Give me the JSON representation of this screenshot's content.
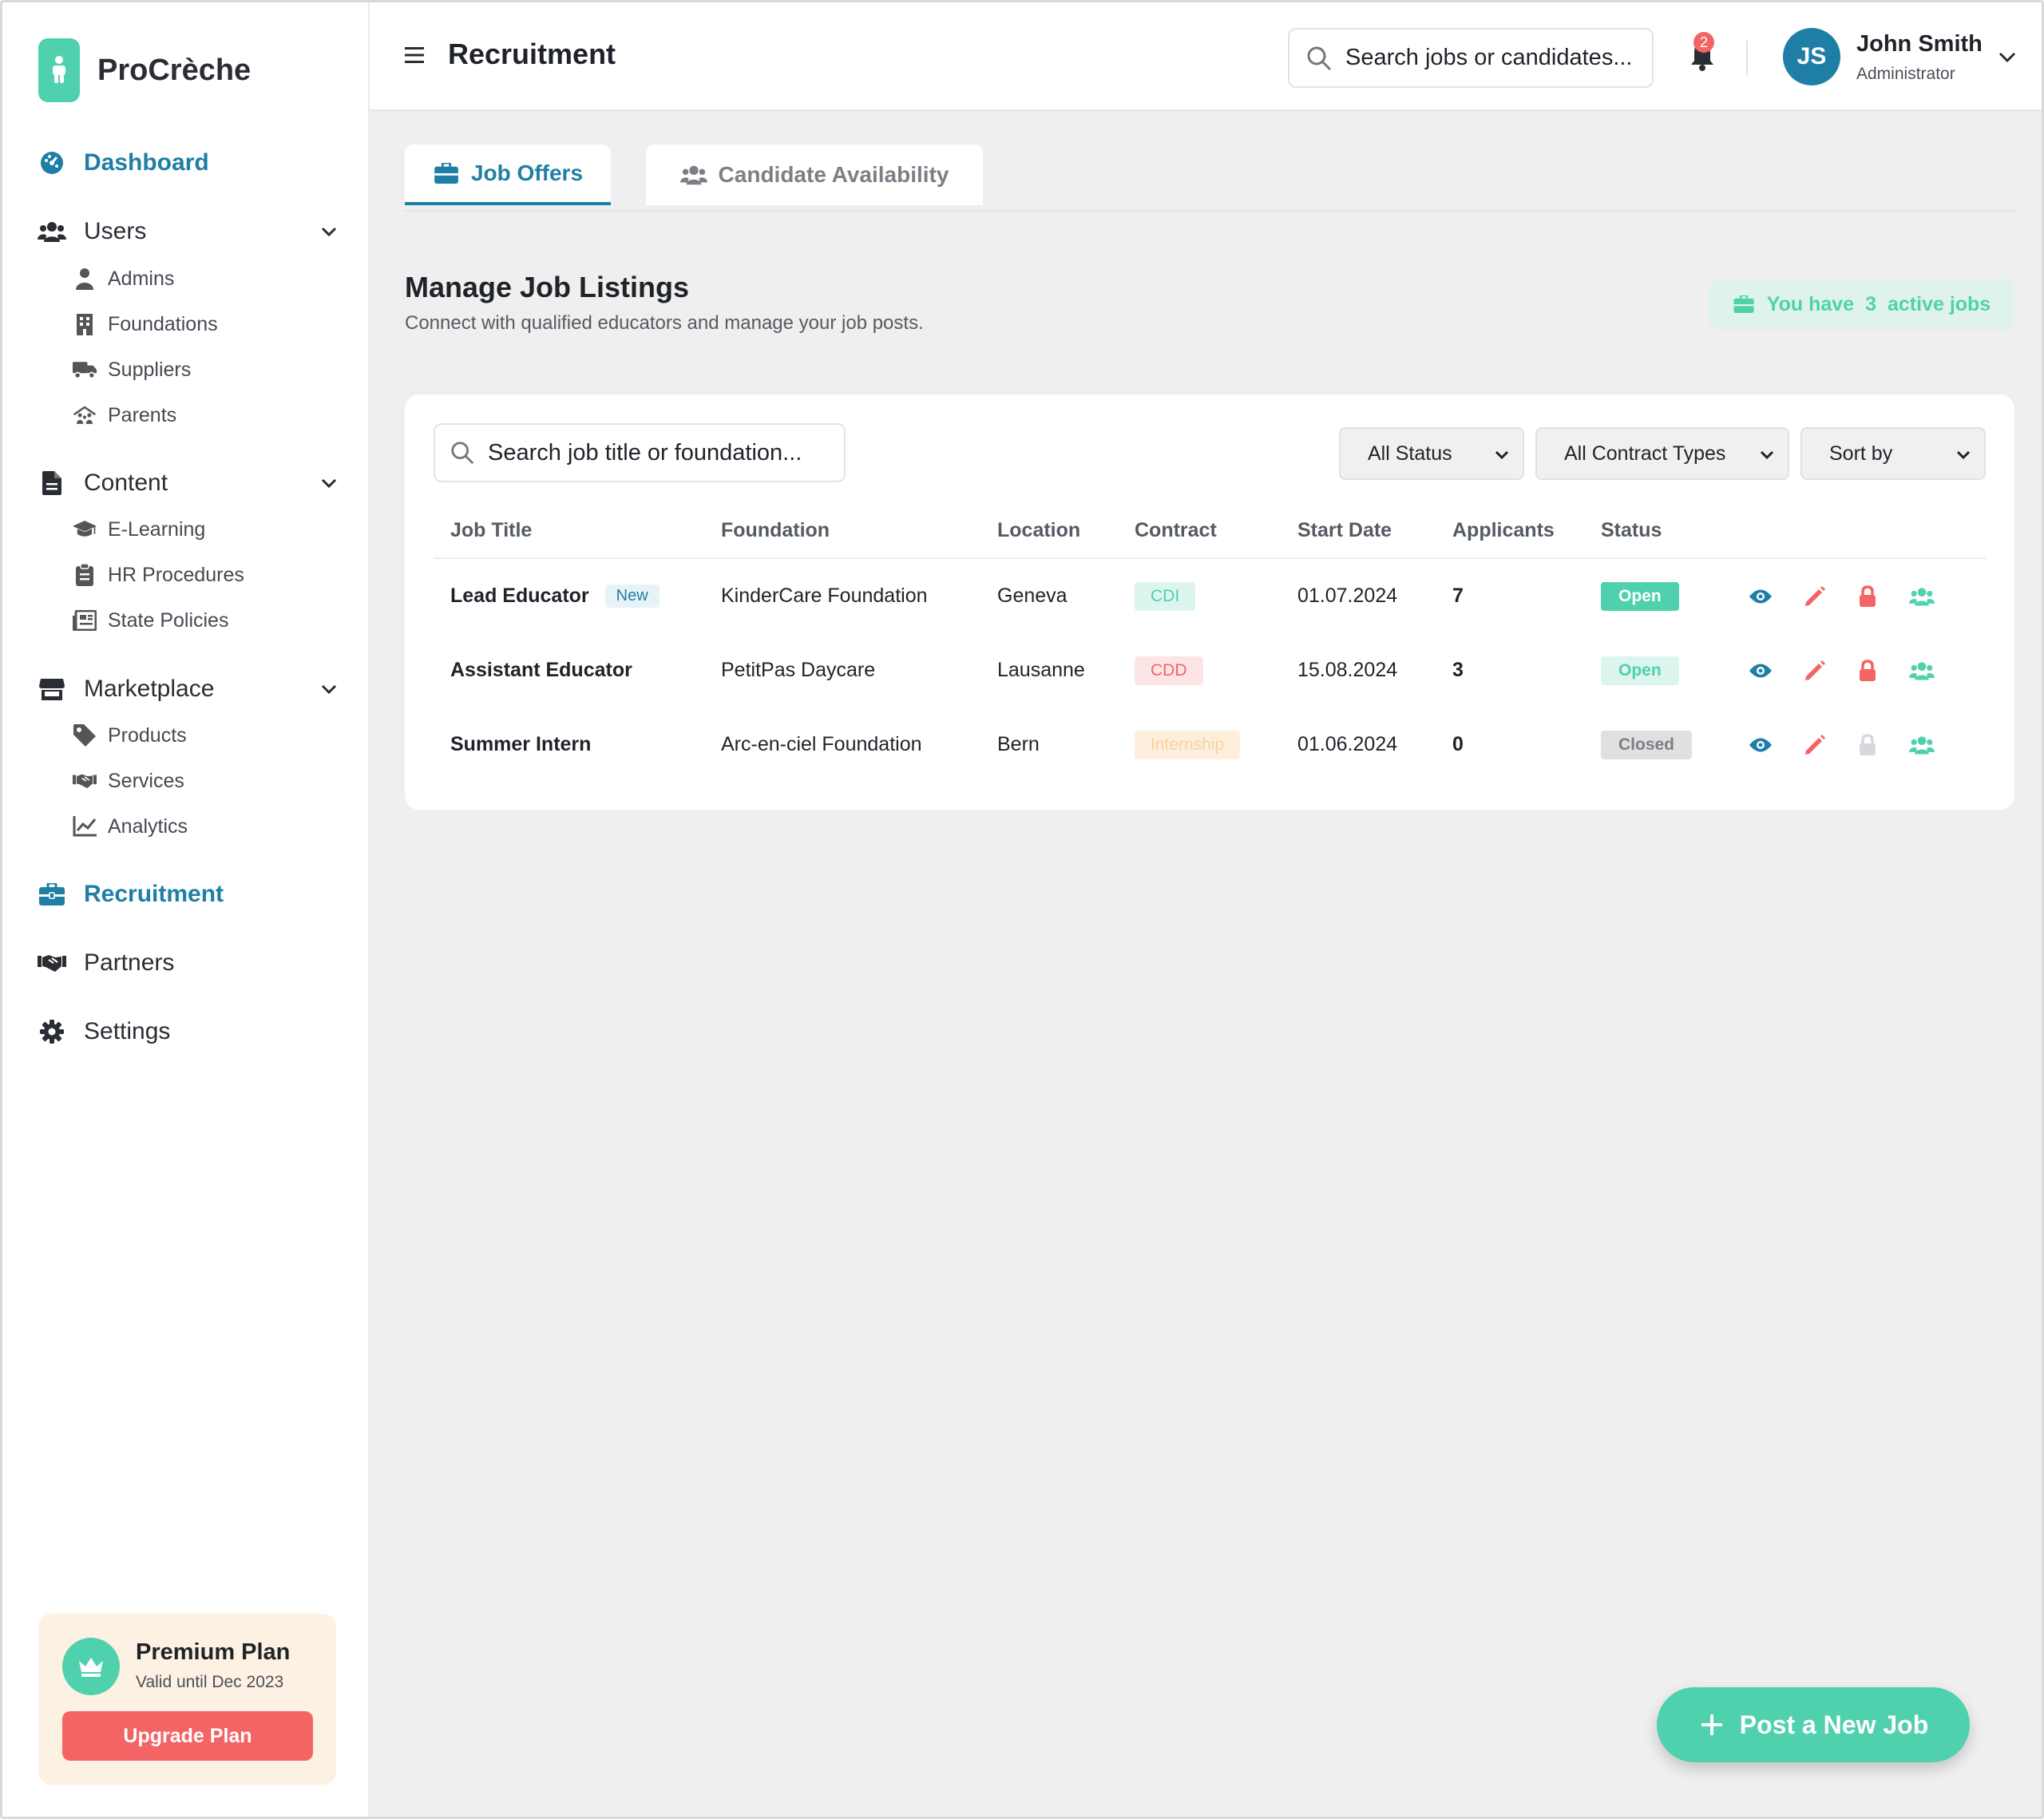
{
  "app": {
    "name": "ProCrèche"
  },
  "colors": {
    "accent": "#1f7ea6",
    "brand": "#4fd1ad",
    "danger": "#f46464",
    "muted": "#e0e0e0"
  },
  "sidebar": {
    "nav": [
      {
        "label": "Dashboard",
        "icon": "dashboard-icon",
        "active": true
      },
      {
        "label": "Users",
        "icon": "users-icon",
        "expandable": true,
        "children": [
          {
            "label": "Admins",
            "icon": "user-icon"
          },
          {
            "label": "Foundations",
            "icon": "building-icon"
          },
          {
            "label": "Suppliers",
            "icon": "truck-icon"
          },
          {
            "label": "Parents",
            "icon": "family-icon"
          }
        ]
      },
      {
        "label": "Content",
        "icon": "file-icon",
        "expandable": true,
        "children": [
          {
            "label": "E-Learning",
            "icon": "graduation-cap-icon"
          },
          {
            "label": "HR Procedures",
            "icon": "clipboard-icon"
          },
          {
            "label": "State Policies",
            "icon": "newspaper-icon"
          }
        ]
      },
      {
        "label": "Marketplace",
        "icon": "store-icon",
        "expandable": true,
        "children": [
          {
            "label": "Products",
            "icon": "tag-icon"
          },
          {
            "label": "Services",
            "icon": "handshake-icon"
          },
          {
            "label": "Analytics",
            "icon": "line-chart-icon"
          }
        ]
      },
      {
        "label": "Recruitment",
        "icon": "briefcase-icon",
        "active": true
      },
      {
        "label": "Partners",
        "icon": "handshake-icon"
      },
      {
        "label": "Settings",
        "icon": "gear-icon"
      }
    ],
    "plan": {
      "title": "Premium Plan",
      "subtitle": "Valid until Dec 2023",
      "button": "Upgrade Plan",
      "icon": "crown-icon"
    }
  },
  "header": {
    "title": "Recruitment",
    "search_placeholder": "Search jobs or candidates...",
    "notifications": "2",
    "user": {
      "initials": "JS",
      "name": "John Smith",
      "role": "Administrator"
    }
  },
  "tabs": [
    {
      "label": "Job Offers",
      "icon": "briefcase-icon",
      "active": true
    },
    {
      "label": "Candidate Availability",
      "icon": "users-icon",
      "active": false
    }
  ],
  "main": {
    "title": "Manage Job Listings",
    "subtitle": "Connect with qualified educators and manage your job posts.",
    "active_jobs": {
      "prefix": "You have",
      "count": "3",
      "suffix": "active jobs"
    }
  },
  "table": {
    "search_placeholder": "Search job title or foundation...",
    "filters": [
      "All Status",
      "All Contract Types",
      "Sort by"
    ],
    "columns": [
      "Job Title",
      "Foundation",
      "Location",
      "Contract",
      "Start Date",
      "Applicants",
      "Status"
    ],
    "rows": [
      {
        "title": "Lead Educator",
        "badge": "New",
        "foundation": "KinderCare Foundation",
        "location": "Geneva",
        "contract": "CDI",
        "start": "01.07.2024",
        "applicants": "7",
        "status": "Open"
      },
      {
        "title": "Assistant Educator",
        "badge": "",
        "foundation": "PetitPas Daycare",
        "location": "Lausanne",
        "contract": "CDD",
        "start": "15.08.2024",
        "applicants": "3",
        "status": "Open"
      },
      {
        "title": "Summer Intern",
        "badge": "",
        "foundation": "Arc-en-ciel Foundation",
        "location": "Bern",
        "contract": "Internship",
        "start": "01.06.2024",
        "applicants": "0",
        "status": "Closed"
      }
    ]
  },
  "fab": {
    "label": "Post a New Job",
    "icon": "plus-icon"
  }
}
